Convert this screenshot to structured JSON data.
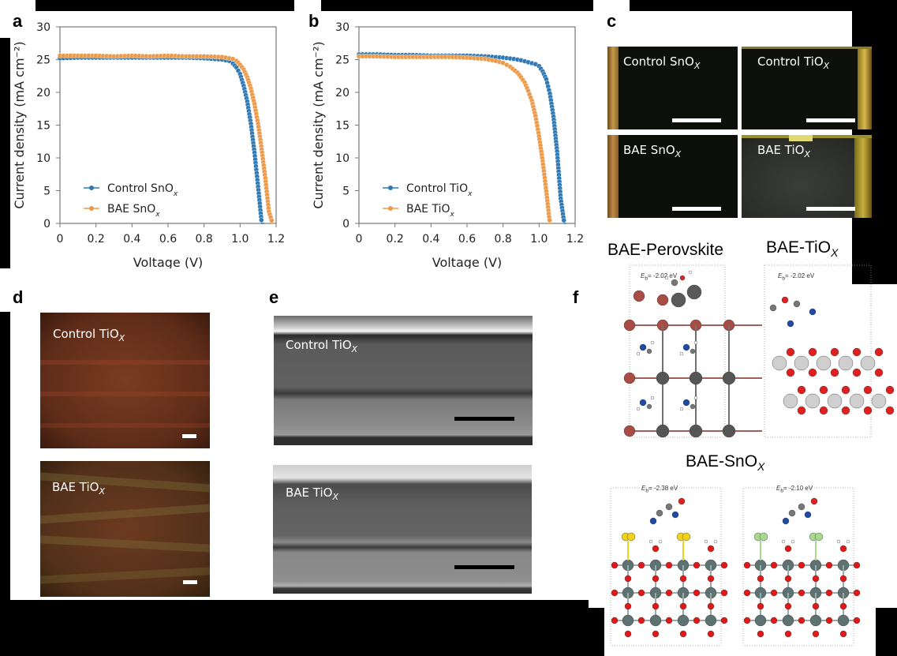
{
  "panels": {
    "a": {
      "label": "a"
    },
    "b": {
      "label": "b"
    },
    "c": {
      "label": "c",
      "photos": [
        {
          "text": "Control SnO",
          "sub": "X"
        },
        {
          "text": "Control TiO",
          "sub": "X"
        },
        {
          "text": "BAE SnO",
          "sub": "X"
        },
        {
          "text": "BAE TiO",
          "sub": "X"
        }
      ]
    },
    "d": {
      "label": "d",
      "photos": [
        {
          "text": "Control TiO",
          "sub": "X"
        },
        {
          "text": "BAE TiO",
          "sub": "X"
        }
      ]
    },
    "e": {
      "label": "e",
      "photos": [
        {
          "text": "Control TiO",
          "sub": "X"
        },
        {
          "text": "BAE TiO",
          "sub": "X"
        }
      ]
    },
    "f": {
      "label": "f",
      "titles": {
        "perovskite": "BAE-Perovskite",
        "tio": "BAE-TiO",
        "tio_sub": "X",
        "sno": "BAE-SnO",
        "sno_sub": "X"
      },
      "energies": [
        {
          "prefix": "E",
          "sub": "b",
          "value": "= -2.02 eV"
        },
        {
          "prefix": "E",
          "sub": "b",
          "value": "= -2.02 eV"
        },
        {
          "prefix": "E",
          "sub": "b",
          "value": "= -2.38 eV"
        },
        {
          "prefix": "E",
          "sub": "b",
          "value": "= -2.10 eV"
        }
      ]
    }
  },
  "colors": {
    "control": "#2f7ab5",
    "bae": "#ec9a4a",
    "axis": "#777777"
  },
  "chart_data": [
    {
      "panel": "a",
      "type": "line",
      "title": "",
      "xlabel": "Voltage (V)",
      "ylabel": "Current density (mA cm⁻²)",
      "xlim": [
        0,
        1.2
      ],
      "ylim": [
        0,
        30
      ],
      "xticks": [
        "0",
        "0.2",
        "0.4",
        "0.6",
        "0.8",
        "1.0",
        "1.2"
      ],
      "yticks": [
        "0",
        "5",
        "10",
        "15",
        "20",
        "25",
        "30"
      ],
      "grid": false,
      "legend_position": "lower left",
      "series": [
        {
          "name": "Control SnOx",
          "color": "#2f7ab5",
          "x": [
            0,
            0.1,
            0.2,
            0.3,
            0.4,
            0.5,
            0.6,
            0.7,
            0.8,
            0.9,
            0.94,
            0.96,
            0.98,
            1.0,
            1.02,
            1.04,
            1.06,
            1.08,
            1.1,
            1.12,
            1.135
          ],
          "y": [
            25.2,
            25.3,
            25.3,
            25.3,
            25.3,
            25.3,
            25.3,
            25.3,
            25.2,
            25.0,
            24.8,
            24.4,
            23.8,
            22.8,
            21.0,
            18.6,
            15.2,
            10.8,
            5.6,
            0.0,
            0.0
          ]
        },
        {
          "name": "BAE SnOx",
          "color": "#ec9a4a",
          "x": [
            0,
            0.1,
            0.2,
            0.3,
            0.4,
            0.5,
            0.6,
            0.7,
            0.8,
            0.9,
            0.96,
            0.98,
            1.0,
            1.02,
            1.04,
            1.06,
            1.08,
            1.1,
            1.12,
            1.14,
            1.16,
            1.18,
            1.19
          ],
          "y": [
            25.6,
            25.6,
            25.6,
            25.5,
            25.6,
            25.5,
            25.6,
            25.5,
            25.5,
            25.4,
            25.1,
            24.8,
            24.2,
            23.5,
            22.3,
            20.6,
            18.2,
            15.2,
            11.3,
            6.9,
            1.8,
            0.0,
            0.0
          ]
        }
      ]
    },
    {
      "panel": "b",
      "type": "line",
      "title": "",
      "xlabel": "Voltage (V)",
      "ylabel": "Current density (mA cm⁻²)",
      "xlim": [
        0,
        1.2
      ],
      "ylim": [
        0,
        30
      ],
      "xticks": [
        "0",
        "0.2",
        "0.4",
        "0.6",
        "0.8",
        "1.0",
        "1.2"
      ],
      "yticks": [
        "0",
        "5",
        "10",
        "15",
        "20",
        "25",
        "30"
      ],
      "grid": false,
      "legend_position": "lower left",
      "series": [
        {
          "name": "Control TiOx",
          "color": "#2f7ab5",
          "x": [
            0,
            0.1,
            0.2,
            0.3,
            0.4,
            0.5,
            0.6,
            0.7,
            0.8,
            0.86,
            0.9,
            0.94,
            0.98,
            1.0,
            1.02,
            1.04,
            1.06,
            1.08,
            1.1,
            1.12,
            1.14,
            1.15
          ],
          "y": [
            25.8,
            25.8,
            25.7,
            25.7,
            25.6,
            25.6,
            25.6,
            25.5,
            25.3,
            25.1,
            24.9,
            24.6,
            24.3,
            24.0,
            23.2,
            22.0,
            19.8,
            16.3,
            11.0,
            3.8,
            0.0,
            0.0
          ]
        },
        {
          "name": "BAE TiOx",
          "color": "#ec9a4a",
          "x": [
            0,
            0.1,
            0.2,
            0.3,
            0.4,
            0.5,
            0.6,
            0.7,
            0.76,
            0.8,
            0.84,
            0.88,
            0.9,
            0.92,
            0.94,
            0.96,
            0.98,
            1.0,
            1.02,
            1.04,
            1.06,
            1.07
          ],
          "y": [
            25.5,
            25.5,
            25.4,
            25.4,
            25.4,
            25.4,
            25.3,
            25.1,
            24.8,
            24.5,
            23.9,
            23.0,
            22.3,
            21.5,
            20.2,
            18.7,
            16.4,
            13.3,
            9.5,
            4.9,
            0.0,
            0.0
          ]
        }
      ]
    }
  ]
}
